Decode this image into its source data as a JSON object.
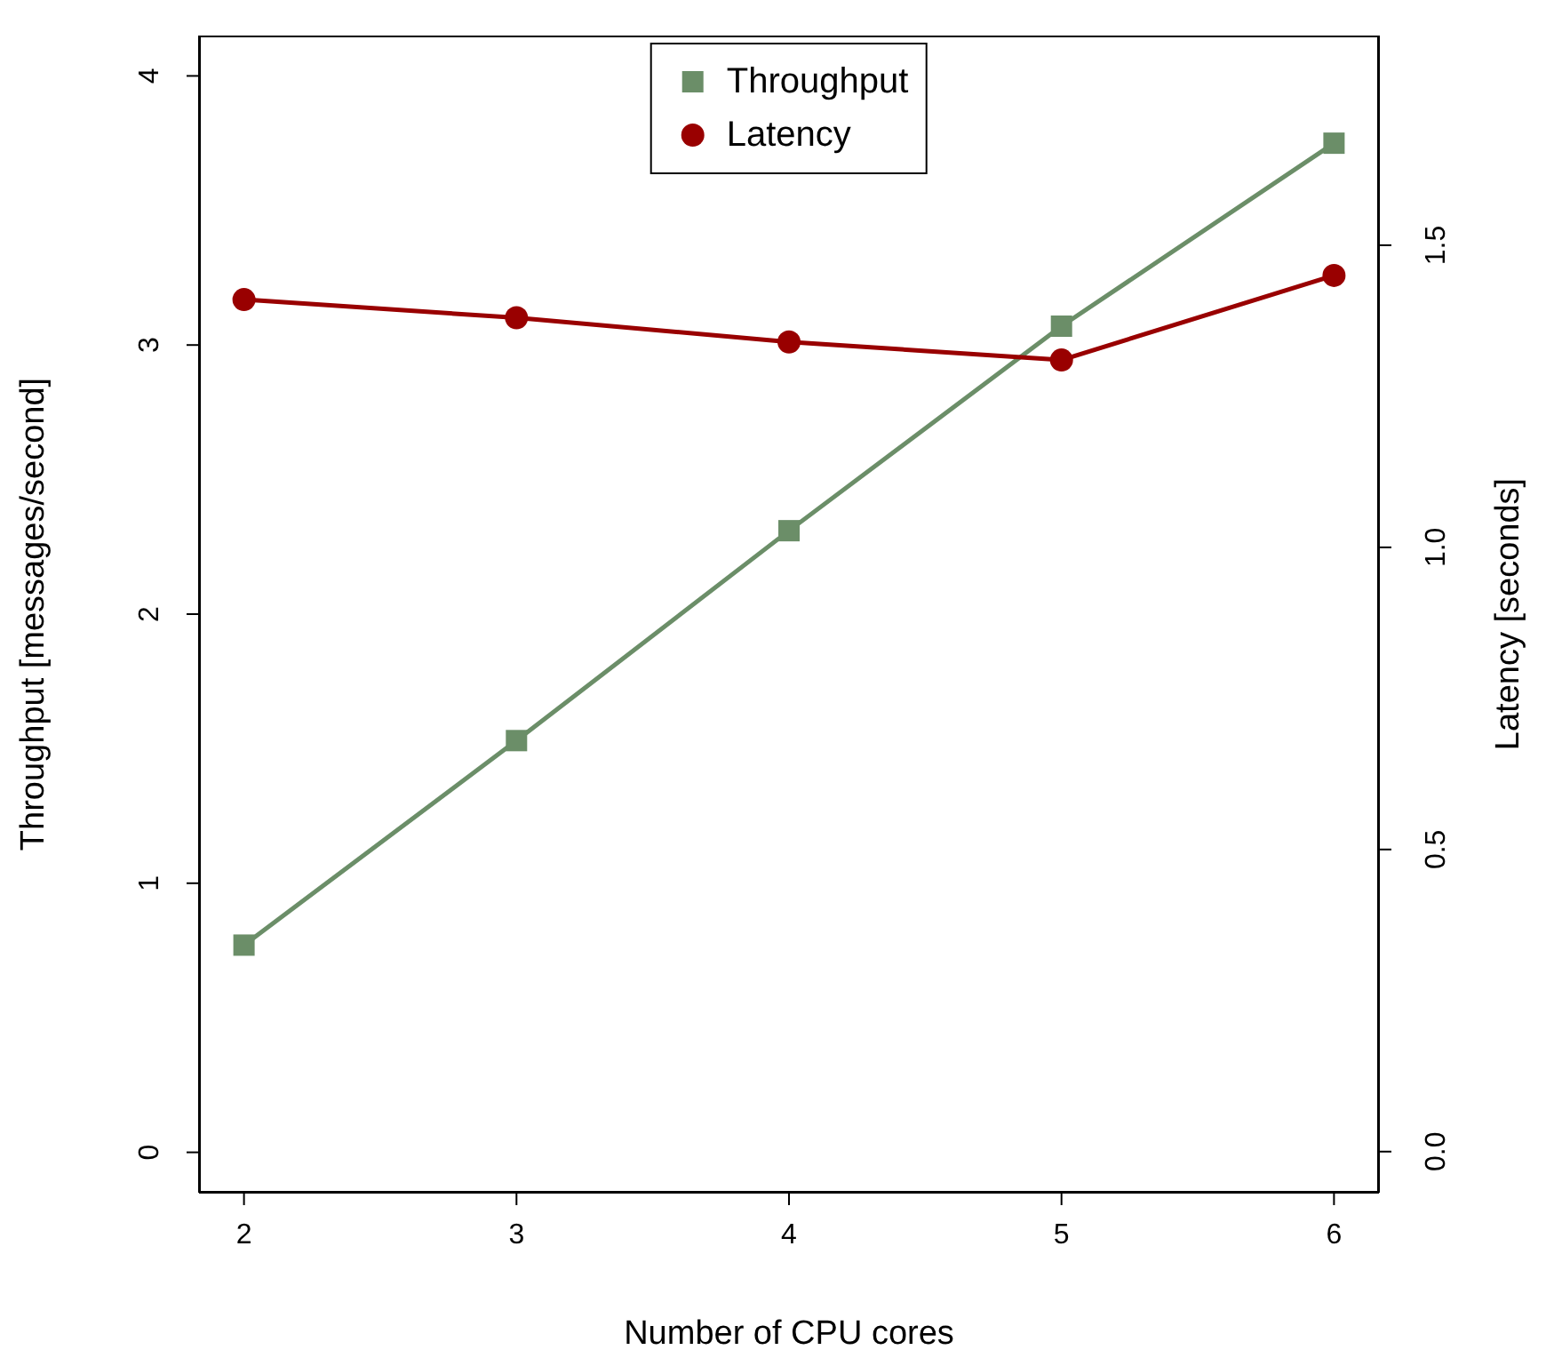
{
  "chart_data": {
    "type": "line",
    "xlabel": "Number of CPU cores",
    "ylabel": "Throughput   [messages/second]",
    "y2label": "Latency   [seconds]",
    "xlim": [
      1.835,
      6.165
    ],
    "xticks": [
      2,
      3,
      4,
      5,
      6
    ],
    "ylim": [
      -0.15,
      4.15
    ],
    "yticks": [
      0,
      1,
      2,
      3,
      4
    ],
    "y2lim": [
      -0.068,
      1.847
    ],
    "y2ticks": [
      {
        "value": 0,
        "label": "0.0"
      },
      {
        "value": 0.5,
        "label": "0.5"
      },
      {
        "value": 1,
        "label": "1.0"
      },
      {
        "value": 1.5,
        "label": "1.5"
      }
    ],
    "legend": "top",
    "series": [
      {
        "name": "Throughput",
        "color": "#6b8e68",
        "marker": "square",
        "x": [
          2,
          3,
          4,
          5,
          6
        ],
        "values": [
          0.77,
          1.53,
          2.31,
          3.07,
          3.75
        ]
      },
      {
        "name": "Latency",
        "color": "#990000",
        "marker": "circle",
        "axis": "y2",
        "x": [
          2,
          3,
          4,
          5,
          6
        ],
        "values": [
          1.41,
          1.38,
          1.34,
          1.31,
          1.45
        ]
      }
    ]
  }
}
